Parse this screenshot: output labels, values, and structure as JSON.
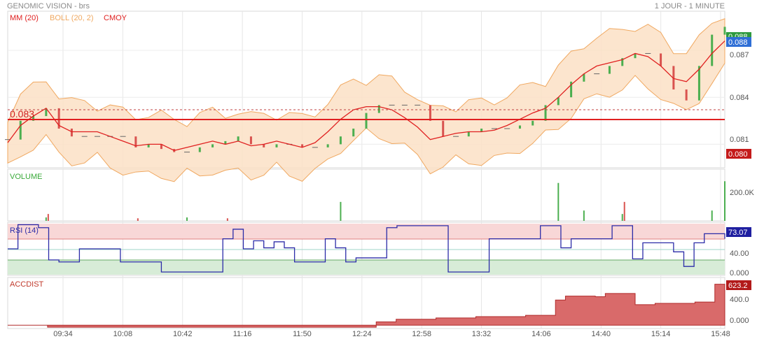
{
  "header": {
    "title": "GENOMIC VISION - brs",
    "period": "1 JOUR - 1 MINUTE"
  },
  "colors": {
    "up": "#4caf50",
    "down": "#d9534f",
    "ma": "#e02020",
    "boll": "#f0a860",
    "rsi": "#2c2ca8",
    "accdist": "#c0392b",
    "volume_label": "#3aaa3a"
  },
  "panels": {
    "price": {
      "legend": [
        "MM (20)",
        "BOLL (20, 2)",
        "CMOY"
      ],
      "ref_label": "0.083",
      "ticks": [
        "0.087",
        "0.084",
        "0.081"
      ],
      "badges": {
        "last": "0.088",
        "high": "0.088",
        "low": "0.080"
      }
    },
    "volume": {
      "label": "VOLUME",
      "ticks": [
        "200.0K"
      ]
    },
    "rsi": {
      "label": "RSI (14)",
      "ticks": [
        "40.00",
        "0.000"
      ],
      "badge": "73.07"
    },
    "accdist": {
      "label": "ACCDIST",
      "ticks": [
        "400.0",
        "0.000"
      ],
      "badge": "623.2"
    }
  },
  "chart_data": {
    "type": "line",
    "x_ticks": [
      "09:34",
      "10:08",
      "10:42",
      "11:16",
      "11:50",
      "12:24",
      "12:58",
      "13:32",
      "14:06",
      "14:40",
      "15:14",
      "15:48"
    ],
    "price": {
      "ylim": [
        0.0795,
        0.0895
      ],
      "close": [
        0.0813,
        0.0825,
        0.0828,
        0.0833,
        0.082,
        0.0815,
        0.0815,
        0.0815,
        0.0815,
        0.0815,
        0.0808,
        0.081,
        0.0807,
        0.0805,
        0.0805,
        0.0808,
        0.081,
        0.0812,
        0.0815,
        0.081,
        0.0808,
        0.081,
        0.081,
        0.0808,
        0.0808,
        0.081,
        0.0815,
        0.082,
        0.083,
        0.0835,
        0.0835,
        0.0835,
        0.0835,
        0.0825,
        0.0815,
        0.0815,
        0.0818,
        0.082,
        0.082,
        0.082,
        0.0822,
        0.0825,
        0.0835,
        0.084,
        0.085,
        0.0855,
        0.0855,
        0.086,
        0.0865,
        0.0868,
        0.0868,
        0.086,
        0.0845,
        0.0838,
        0.086,
        0.088,
        0.0885
      ],
      "ma20": [
        0.0811,
        0.0822,
        0.0828,
        0.0833,
        0.0822,
        0.0818,
        0.0818,
        0.0818,
        0.0815,
        0.0812,
        0.0809,
        0.081,
        0.081,
        0.0806,
        0.0808,
        0.081,
        0.0812,
        0.081,
        0.0812,
        0.0809,
        0.081,
        0.0812,
        0.081,
        0.0808,
        0.0811,
        0.0818,
        0.0826,
        0.0832,
        0.0834,
        0.0834,
        0.0832,
        0.0827,
        0.0821,
        0.0813,
        0.0815,
        0.0817,
        0.0818,
        0.0818,
        0.0819,
        0.0822,
        0.0826,
        0.083,
        0.0833,
        0.084,
        0.0848,
        0.0855,
        0.086,
        0.0862,
        0.0864,
        0.0868,
        0.0866,
        0.086,
        0.0852,
        0.085,
        0.0858,
        0.0868,
        0.0876
      ]
    },
    "volume": {
      "ylim": [
        0,
        300000
      ],
      "up": [
        0,
        0,
        0,
        20000,
        0,
        0,
        0,
        0,
        0,
        0,
        0,
        0,
        0,
        0,
        20000,
        0,
        0,
        0,
        0,
        0,
        0,
        0,
        0,
        0,
        0,
        0,
        110000,
        0,
        0,
        0,
        0,
        0,
        0,
        0,
        0,
        0,
        0,
        0,
        0,
        0,
        0,
        0,
        0,
        220000,
        0,
        60000,
        0,
        0,
        40000,
        0,
        0,
        0,
        0,
        0,
        0,
        60000,
        230000
      ],
      "down": [
        0,
        0,
        0,
        40000,
        0,
        0,
        0,
        0,
        0,
        0,
        15000,
        0,
        0,
        0,
        0,
        0,
        0,
        15000,
        0,
        0,
        0,
        0,
        0,
        0,
        0,
        0,
        0,
        0,
        0,
        0,
        0,
        0,
        0,
        0,
        0,
        0,
        0,
        0,
        0,
        0,
        0,
        0,
        0,
        0,
        0,
        0,
        0,
        0,
        110000,
        0,
        0,
        0,
        0,
        0,
        0,
        0,
        0
      ]
    },
    "rsi": {
      "ylim": [
        0,
        100
      ],
      "values": [
        50,
        98,
        98,
        92,
        28,
        24,
        24,
        50,
        50,
        50,
        50,
        24,
        24,
        24,
        24,
        4,
        4,
        4,
        4,
        4,
        4,
        70,
        89,
        50,
        66,
        52,
        64,
        52,
        24,
        24,
        24,
        70,
        52,
        24,
        32,
        32,
        32,
        92,
        96,
        96,
        96,
        96,
        96,
        4,
        4,
        4,
        4,
        70,
        70,
        70,
        70,
        70,
        96,
        96,
        52,
        70,
        70,
        70,
        70,
        96,
        96,
        30,
        62,
        62,
        62,
        44,
        15,
        62,
        80,
        80,
        70
      ]
    },
    "accdist": {
      "ylim": [
        -50,
        700
      ],
      "values": [
        0,
        0,
        0,
        0,
        -30,
        -30,
        -30,
        -30,
        -30,
        -30,
        -30,
        -30,
        -30,
        -30,
        -30,
        -30,
        -30,
        -30,
        -30,
        -30,
        -30,
        -30,
        -30,
        -30,
        -30,
        -30,
        -30,
        -30,
        -30,
        -30,
        -30,
        -30,
        -30,
        -30,
        -30,
        -30,
        -30,
        50,
        50,
        90,
        90,
        90,
        90,
        110,
        110,
        110,
        110,
        130,
        130,
        130,
        130,
        130,
        150,
        150,
        150,
        380,
        440,
        440,
        440,
        430,
        480,
        480,
        480,
        310,
        310,
        330,
        330,
        330,
        330,
        350,
        350,
        620,
        620
      ]
    }
  }
}
